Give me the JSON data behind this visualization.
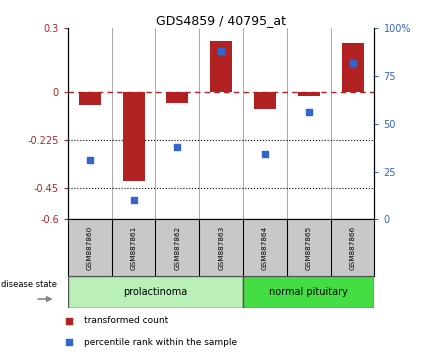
{
  "title": "GDS4859 / 40795_at",
  "samples": [
    "GSM887860",
    "GSM887861",
    "GSM887862",
    "GSM887863",
    "GSM887864",
    "GSM887865",
    "GSM887866"
  ],
  "red_values": [
    -0.06,
    -0.42,
    -0.05,
    0.24,
    -0.08,
    -0.02,
    0.23
  ],
  "blue_pct": [
    31,
    10,
    38,
    88,
    34,
    56,
    82
  ],
  "red_color": "#b22222",
  "blue_color": "#3366cc",
  "ylim_left": [
    -0.6,
    0.3
  ],
  "ylim_right": [
    0,
    100
  ],
  "yticks_left": [
    0.3,
    0,
    -0.225,
    -0.45,
    -0.6
  ],
  "ytick_labels_left": [
    "0.3",
    "0",
    "-0.225",
    "-0.45",
    "-0.6"
  ],
  "yticks_right": [
    100,
    75,
    50,
    25,
    0
  ],
  "ytick_labels_right": [
    "100%",
    "75",
    "50",
    "25",
    "0"
  ],
  "dotted_lines": [
    -0.225,
    -0.45
  ],
  "group_labels": [
    "prolactinoma",
    "normal pituitary"
  ],
  "prolactinoma_color_light": "#b8f0b8",
  "prolactinoma_color": "#b8f0b8",
  "normal_color": "#44dd44",
  "disease_state_label": "disease state",
  "legend_items": [
    "transformed count",
    "percentile rank within the sample"
  ],
  "bg_color": "#ffffff",
  "sample_box_color": "#c8c8c8",
  "bar_width": 0.5
}
